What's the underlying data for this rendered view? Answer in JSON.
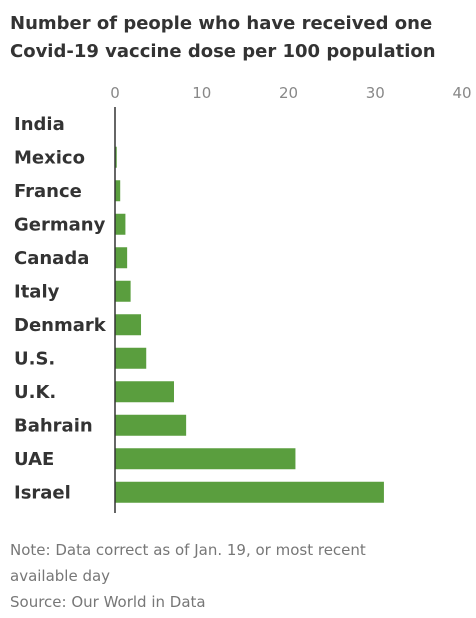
{
  "chart_data": {
    "type": "bar",
    "orientation": "horizontal",
    "title_lines": [
      "Number of people who have received one",
      "Covid-19 vaccine dose per 100 population"
    ],
    "categories": [
      "India",
      "Mexico",
      "France",
      "Germany",
      "Canada",
      "Italy",
      "Denmark",
      "U.S.",
      "U.K.",
      "Bahrain",
      "UAE",
      "Israel"
    ],
    "values": [
      0.0,
      0.2,
      0.6,
      1.2,
      1.4,
      1.8,
      3.0,
      3.6,
      6.8,
      8.2,
      20.8,
      31.0
    ],
    "xlim": [
      0,
      40
    ],
    "xticks": [
      0,
      10,
      20,
      30,
      40
    ],
    "bar_color": "#5a9e3e",
    "grid": false
  },
  "footer": {
    "note_lines": [
      "Note: Data correct as of Jan. 19, or most recent",
      "available day"
    ],
    "source": "Source: Our World in Data"
  }
}
